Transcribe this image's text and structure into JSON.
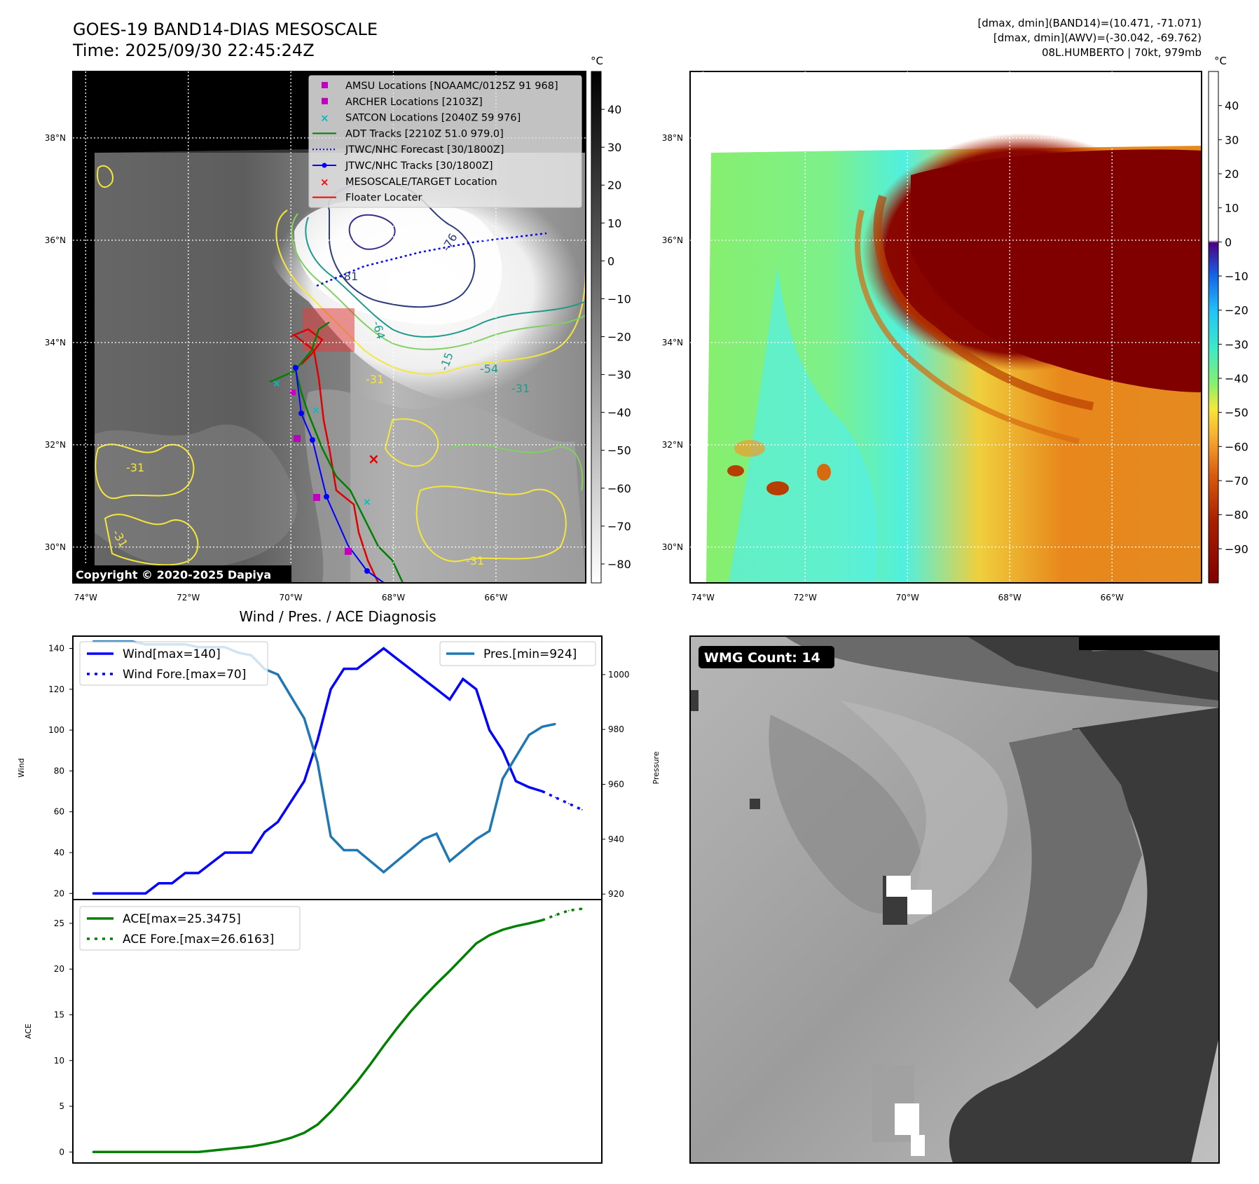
{
  "header": {
    "title_line1": "GOES-19 BAND14-DIAS MESOSCALE",
    "title_line2": "Time: 2025/09/30 22:45:24Z",
    "right_line1": "[dmax, dmin](BAND14)=(10.471, -71.071)",
    "right_line2": "[dmax, dmin](AWV)=(-30.042, -69.762)",
    "right_line3": "08L.HUMBERTO | 70kt, 979mb"
  },
  "map": {
    "lon_ticks": [
      "74°W",
      "72°W",
      "70°W",
      "68°W",
      "66°W"
    ],
    "lon_values": [
      -74,
      -72,
      -70,
      -68,
      -66
    ],
    "lat_ticks": [
      "38°N",
      "36°N",
      "34°N",
      "32°N",
      "30°N"
    ],
    "lat_values": [
      38,
      36,
      34,
      32,
      30
    ],
    "lon_range": [
      -74.25,
      -64.25
    ],
    "lat_range": [
      29.3,
      39.3
    ],
    "copyright": "Copyright © 2020-2025 Dapiya",
    "contour_labels": [
      "-76",
      "-81",
      "-64",
      "-31",
      "-54",
      "-15",
      "-31",
      "-31",
      "-31",
      "-31"
    ],
    "legend": [
      {
        "label": "AMSU Locations [NOAAMC/0125Z 91 968]",
        "marker": "square",
        "color": "#bf00bf"
      },
      {
        "label": "ARCHER Locations [2103Z]",
        "marker": "square",
        "color": "#bf00bf"
      },
      {
        "label": "SATCON Locations [2040Z 59 976]",
        "marker": "x",
        "color": "#00bfbf"
      },
      {
        "label": "ADT Tracks [2210Z 51.0 979.0]",
        "marker": "line",
        "color": "#008000"
      },
      {
        "label": "JTWC/NHC Forecast [30/1800Z]",
        "marker": "dotted",
        "color": "#0000ff"
      },
      {
        "label": "JTWC/NHC Tracks [30/1800Z]",
        "marker": "line-dot",
        "color": "#0000ff"
      },
      {
        "label": "MESOSCALE/TARGET Location",
        "marker": "x",
        "color": "#ff0000"
      },
      {
        "label": "Floater Locater",
        "marker": "line",
        "color": "#ff0000"
      }
    ],
    "cb1_unit": "°C",
    "cb1_ticks": [
      "40",
      "30",
      "20",
      "10",
      "0",
      "−10",
      "−20",
      "−30",
      "−40",
      "−50",
      "−60",
      "−70",
      "−80"
    ],
    "cb1_values": [
      40,
      30,
      20,
      10,
      0,
      -10,
      -20,
      -30,
      -40,
      -50,
      -60,
      -70,
      -80
    ],
    "cb1_range": [
      -85,
      50
    ],
    "cb2_unit": "°C",
    "cb2_ticks": [
      "40",
      "30",
      "20",
      "10",
      "0",
      "−10",
      "−20",
      "−30",
      "−40",
      "−50",
      "−60",
      "−70",
      "−80",
      "−90"
    ],
    "cb2_values": [
      40,
      30,
      20,
      10,
      0,
      -10,
      -20,
      -30,
      -40,
      -50,
      -60,
      -70,
      -80,
      -90
    ],
    "cb2_range": [
      -100,
      50
    ]
  },
  "colors": {
    "wind": "#0000ff",
    "pressure": "#1f77b4",
    "ace": "#008000",
    "track_blue": "#0000ff",
    "track_red": "#e00000",
    "track_green": "#008000"
  },
  "diag": {
    "title": "Wind / Pres. / ACE Diagnosis",
    "wind_label": "Wind",
    "pres_label": "Pressure",
    "ace_label": "ACE",
    "legend_wind": "Wind[max=140]",
    "legend_wind_fore": "Wind Fore.[max=70]",
    "legend_pres": "Pres.[min=924]",
    "legend_ace": "ACE[max=25.3475]",
    "legend_ace_fore": "ACE Fore.[max=26.6163]"
  },
  "wmg": {
    "badge": "WMG Count: 14"
  },
  "chart_data": [
    {
      "type": "line",
      "title": "Wind / Pres. / ACE Diagnosis",
      "ylabel": "Wind",
      "ylim": [
        17,
        146
      ],
      "yticks": [
        20,
        40,
        60,
        80,
        100,
        120,
        140
      ],
      "xlim": [
        -1.5,
        38.5
      ],
      "series": [
        {
          "name": "Wind[max=140]",
          "x": [
            0,
            1,
            2,
            3,
            4,
            5,
            6,
            7,
            8,
            9,
            10,
            11,
            12,
            13,
            14,
            15,
            16,
            17,
            18,
            19,
            20,
            21,
            22,
            23,
            24,
            25,
            26,
            27,
            28,
            29,
            30,
            31,
            32,
            33,
            34
          ],
          "values": [
            20,
            20,
            20,
            20,
            20,
            25,
            25,
            30,
            30,
            35,
            40,
            40,
            40,
            50,
            55,
            65,
            75,
            95,
            120,
            130,
            130,
            135,
            140,
            135,
            130,
            125,
            120,
            115,
            125,
            120,
            100,
            90,
            75,
            72,
            70
          ]
        },
        {
          "name": "Wind Fore.[max=70]",
          "x": [
            34,
            35,
            36,
            37
          ],
          "values": [
            70,
            67,
            64,
            61
          ],
          "style": "dotted"
        }
      ]
    },
    {
      "type": "line",
      "ylabel": "Pressure",
      "ylim": [
        918,
        1014
      ],
      "yticks": [
        920,
        940,
        960,
        980,
        1000
      ],
      "xlim": [
        -1.5,
        38.5
      ],
      "series": [
        {
          "name": "Pres.[min=924]",
          "x": [
            0,
            1,
            2,
            3,
            4,
            5,
            6,
            7,
            8,
            9,
            10,
            11,
            12,
            13,
            14,
            15,
            16,
            17,
            18,
            19,
            20,
            21,
            22,
            23,
            24,
            25,
            26,
            27,
            28,
            29,
            30,
            31,
            32,
            33,
            34,
            35
          ],
          "values": [
            1012,
            1012,
            1012,
            1012,
            1011,
            1011,
            1011,
            1011,
            1010,
            1010,
            1010,
            1008,
            1007,
            1002,
            1000,
            992,
            984,
            968,
            941,
            936,
            936,
            932,
            928,
            932,
            936,
            940,
            942,
            932,
            936,
            940,
            943,
            962,
            970,
            978,
            981,
            982
          ]
        }
      ]
    },
    {
      "type": "line",
      "ylabel": "ACE",
      "ylim": [
        -1.2,
        27.6
      ],
      "yticks": [
        0,
        5,
        10,
        15,
        20,
        25
      ],
      "xlim": [
        -1.5,
        38.5
      ],
      "series": [
        {
          "name": "ACE[max=25.3475]",
          "x": [
            0,
            1,
            2,
            3,
            4,
            5,
            6,
            7,
            8,
            9,
            10,
            11,
            12,
            13,
            14,
            15,
            16,
            17,
            18,
            19,
            20,
            21,
            22,
            23,
            24,
            25,
            26,
            27,
            28,
            29,
            30,
            31,
            32,
            33,
            34
          ],
          "values": [
            0,
            0,
            0,
            0,
            0,
            0,
            0,
            0,
            0,
            0.15,
            0.3,
            0.45,
            0.6,
            0.85,
            1.15,
            1.55,
            2.1,
            3.0,
            4.4,
            6.0,
            7.7,
            9.6,
            11.6,
            13.5,
            15.3,
            16.9,
            18.4,
            19.8,
            21.3,
            22.8,
            23.7,
            24.3,
            24.7,
            25.0,
            25.35
          ]
        },
        {
          "name": "ACE Fore.[max=26.6163]",
          "x": [
            34,
            35,
            36,
            37
          ],
          "values": [
            25.35,
            25.9,
            26.4,
            26.6
          ],
          "style": "dotted"
        }
      ]
    }
  ]
}
